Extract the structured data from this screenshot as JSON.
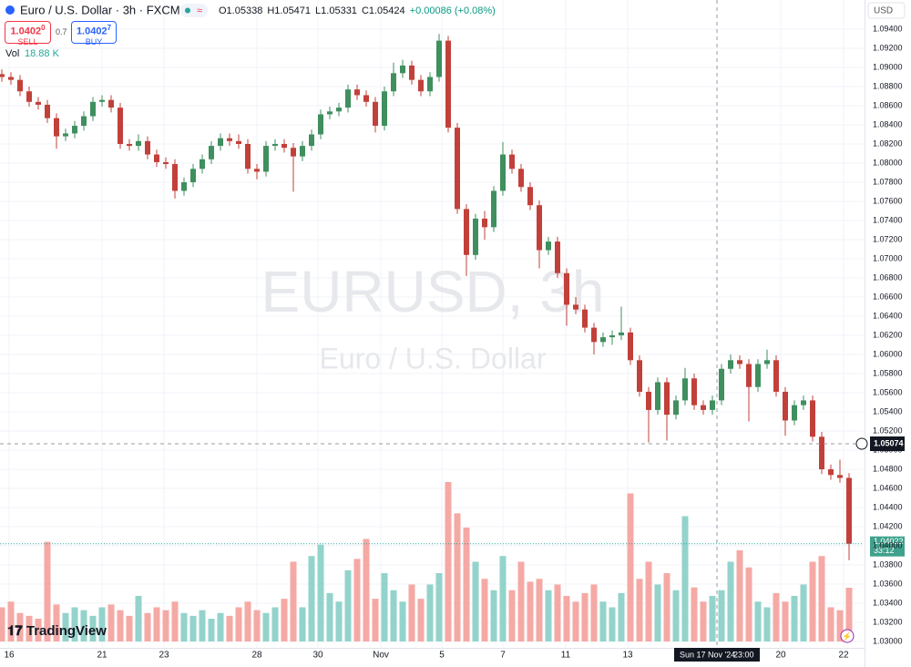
{
  "chart_data": {
    "type": "candlestick",
    "title": "Euro / U.S. Dollar · 3h · FXCM",
    "ohlc_readout": [
      "O1.05338",
      "H1.05471",
      "L1.05331",
      "C1.05424",
      "+0.00086 (+0.08%)"
    ],
    "sell": {
      "price": "1.0402",
      "pip": "0",
      "label": "SELL"
    },
    "buy": {
      "price": "1.0402",
      "pip": "7",
      "label": "BUY"
    },
    "spread": "0.7",
    "volume_label": "Vol",
    "volume_readout": "18.88 K",
    "watermark": "EURUSD, 3h",
    "watermark_subtitle": "Euro / U.S. Dollar",
    "currency": "USD",
    "crosshair_price": "1.05074",
    "crosshair_date": "Sun 17 Nov '24",
    "crosshair_time": "23:00",
    "countdown": "33:12",
    "brand": "TradingView",
    "up_color": "#3f8f5f",
    "down_color": "#c2403a",
    "volume_up_color": "#93d3cb",
    "volume_down_color": "#f5a9a5",
    "grid": true,
    "ylim": [
      1.03,
      1.094
    ],
    "yticks": [
      {
        "value": 1.03,
        "label": "1.03000"
      },
      {
        "value": 1.032,
        "label": "1.03200"
      },
      {
        "value": 1.034,
        "label": "1.03400"
      },
      {
        "value": 1.036,
        "label": "1.03600"
      },
      {
        "value": 1.038,
        "label": "1.03800"
      },
      {
        "value": 1.04,
        "label": "1.04000"
      },
      {
        "value": 1.042,
        "label": "1.04200"
      },
      {
        "value": 1.044,
        "label": "1.04400"
      },
      {
        "value": 1.046,
        "label": "1.04600"
      },
      {
        "value": 1.048,
        "label": "1.04800"
      },
      {
        "value": 1.05,
        "label": "1.05000"
      },
      {
        "value": 1.052,
        "label": "1.05200"
      },
      {
        "value": 1.054,
        "label": "1.05400"
      },
      {
        "value": 1.056,
        "label": "1.05600"
      },
      {
        "value": 1.058,
        "label": "1.05800"
      },
      {
        "value": 1.06,
        "label": "1.06000"
      },
      {
        "value": 1.062,
        "label": "1.06200"
      },
      {
        "value": 1.064,
        "label": "1.06400"
      },
      {
        "value": 1.066,
        "label": "1.06600"
      },
      {
        "value": 1.068,
        "label": "1.06800"
      },
      {
        "value": 1.07,
        "label": "1.07000"
      },
      {
        "value": 1.072,
        "label": "1.07200"
      },
      {
        "value": 1.074,
        "label": "1.07400"
      },
      {
        "value": 1.076,
        "label": "1.07600"
      },
      {
        "value": 1.078,
        "label": "1.07800"
      },
      {
        "value": 1.08,
        "label": "1.08000"
      },
      {
        "value": 1.082,
        "label": "1.08200"
      },
      {
        "value": 1.084,
        "label": "1.08400"
      },
      {
        "value": 1.086,
        "label": "1.08600"
      },
      {
        "value": 1.088,
        "label": "1.08800"
      },
      {
        "value": 1.09,
        "label": "1.09000"
      },
      {
        "value": 1.092,
        "label": "1.09200"
      },
      {
        "value": 1.094,
        "label": "1.09400"
      }
    ],
    "xlim": [
      -0.2,
      94.6
    ],
    "xticks": [
      {
        "value": 0.8,
        "label": "16"
      },
      {
        "value": 11,
        "label": "21"
      },
      {
        "value": 17.8,
        "label": "23"
      },
      {
        "value": 28,
        "label": "28"
      },
      {
        "value": 34.7,
        "label": "30"
      },
      {
        "value": 41.6,
        "label": "Nov"
      },
      {
        "value": 48.3,
        "label": "5"
      },
      {
        "value": 55,
        "label": "7"
      },
      {
        "value": 61.9,
        "label": "11"
      },
      {
        "value": 68.7,
        "label": "13"
      },
      {
        "value": 85.5,
        "label": "20"
      },
      {
        "value": 92.4,
        "label": "22"
      }
    ],
    "volume_ylim": [
      0,
      215
    ],
    "ohlc": [
      [
        1.0893,
        1.0898,
        1.0885,
        1.089
      ],
      [
        1.089,
        1.0895,
        1.0882,
        1.0887
      ],
      [
        1.0887,
        1.0892,
        1.087,
        1.0875
      ],
      [
        1.0875,
        1.088,
        1.0859,
        1.0864
      ],
      [
        1.0864,
        1.0869,
        1.0856,
        1.0861
      ],
      [
        1.0861,
        1.0866,
        1.0842,
        1.0847
      ],
      [
        1.0847,
        1.0852,
        1.0815,
        1.0828
      ],
      [
        1.0828,
        1.0836,
        1.0823,
        1.0831
      ],
      [
        1.0831,
        1.0844,
        1.0826,
        1.0839
      ],
      [
        1.0839,
        1.0854,
        1.0834,
        1.0849
      ],
      [
        1.0849,
        1.0869,
        1.0844,
        1.0864
      ],
      [
        1.0864,
        1.0871,
        1.0859,
        1.0866
      ],
      [
        1.0866,
        1.0871,
        1.0853,
        1.0858
      ],
      [
        1.0858,
        1.0863,
        1.0815,
        1.082
      ],
      [
        1.082,
        1.0825,
        1.0813,
        1.0818
      ],
      [
        1.0818,
        1.083,
        1.0813,
        1.0823
      ],
      [
        1.0823,
        1.0828,
        1.0804,
        1.0809
      ],
      [
        1.0809,
        1.0814,
        1.0796,
        1.0801
      ],
      [
        1.0801,
        1.0806,
        1.0794,
        1.0799
      ],
      [
        1.0799,
        1.0804,
        1.0763,
        1.0771
      ],
      [
        1.0771,
        1.0785,
        1.0766,
        1.078
      ],
      [
        1.078,
        1.0799,
        1.0775,
        1.0794
      ],
      [
        1.0794,
        1.0809,
        1.0789,
        1.0804
      ],
      [
        1.0804,
        1.0823,
        1.0799,
        1.0818
      ],
      [
        1.0818,
        1.0831,
        1.0813,
        1.0826
      ],
      [
        1.0826,
        1.0831,
        1.0818,
        1.0823
      ],
      [
        1.0823,
        1.083,
        1.0815,
        1.082
      ],
      [
        1.082,
        1.0825,
        1.0789,
        1.0794
      ],
      [
        1.0794,
        1.0799,
        1.0783,
        1.0791
      ],
      [
        1.0791,
        1.0823,
        1.0786,
        1.0818
      ],
      [
        1.0818,
        1.0825,
        1.0813,
        1.082
      ],
      [
        1.082,
        1.0825,
        1.0811,
        1.0816
      ],
      [
        1.0816,
        1.0821,
        1.077,
        1.0807
      ],
      [
        1.0807,
        1.0823,
        1.0802,
        1.0818
      ],
      [
        1.0818,
        1.0835,
        1.0813,
        1.083
      ],
      [
        1.083,
        1.0856,
        1.0825,
        1.0851
      ],
      [
        1.0851,
        1.0859,
        1.0846,
        1.0854
      ],
      [
        1.0854,
        1.0863,
        1.0849,
        1.0858
      ],
      [
        1.0858,
        1.0882,
        1.0853,
        1.0877
      ],
      [
        1.0877,
        1.0882,
        1.0866,
        1.0871
      ],
      [
        1.0871,
        1.0876,
        1.0859,
        1.0864
      ],
      [
        1.0864,
        1.0869,
        1.0832,
        1.0839
      ],
      [
        1.0839,
        1.088,
        1.0834,
        1.0875
      ],
      [
        1.0875,
        1.0905,
        1.087,
        1.0894
      ],
      [
        1.0894,
        1.0908,
        1.0889,
        1.0902
      ],
      [
        1.0902,
        1.0907,
        1.0882,
        1.0887
      ],
      [
        1.0887,
        1.0892,
        1.087,
        1.0875
      ],
      [
        1.0875,
        1.0895,
        1.087,
        1.089
      ],
      [
        1.089,
        1.0935,
        1.0885,
        1.0928
      ],
      [
        1.0928,
        1.0933,
        1.0832,
        1.0837
      ],
      [
        1.0837,
        1.0842,
        1.0747,
        1.0752
      ],
      [
        1.0752,
        1.0757,
        1.0682,
        1.0704
      ],
      [
        1.0704,
        1.0747,
        1.0699,
        1.0742
      ],
      [
        1.0742,
        1.075,
        1.072,
        1.0733
      ],
      [
        1.0733,
        1.0776,
        1.0728,
        1.0771
      ],
      [
        1.0771,
        1.0822,
        1.0766,
        1.0809
      ],
      [
        1.0809,
        1.0814,
        1.0789,
        1.0794
      ],
      [
        1.0794,
        1.0799,
        1.077,
        1.0775
      ],
      [
        1.0775,
        1.078,
        1.0751,
        1.0756
      ],
      [
        1.0756,
        1.0761,
        1.069,
        1.0709
      ],
      [
        1.0709,
        1.0723,
        1.0704,
        1.0718
      ],
      [
        1.0718,
        1.0723,
        1.068,
        1.0685
      ],
      [
        1.0685,
        1.069,
        1.063,
        1.0652
      ],
      [
        1.0652,
        1.066,
        1.0642,
        1.0647
      ],
      [
        1.0647,
        1.0652,
        1.0623,
        1.0628
      ],
      [
        1.0628,
        1.0633,
        1.06,
        1.0613
      ],
      [
        1.0613,
        1.0623,
        1.0608,
        1.0618
      ],
      [
        1.0618,
        1.0625,
        1.061,
        1.062
      ],
      [
        1.062,
        1.065,
        1.0615,
        1.0623
      ],
      [
        1.0623,
        1.0628,
        1.0589,
        1.0594
      ],
      [
        1.0594,
        1.0599,
        1.0556,
        1.0561
      ],
      [
        1.0561,
        1.0566,
        1.0508,
        1.0542
      ],
      [
        1.0542,
        1.0576,
        1.0537,
        1.0571
      ],
      [
        1.0571,
        1.0576,
        1.051,
        1.0537
      ],
      [
        1.0537,
        1.0557,
        1.0532,
        1.0552
      ],
      [
        1.0552,
        1.0586,
        1.0547,
        1.0575
      ],
      [
        1.0575,
        1.058,
        1.0542,
        1.0547
      ],
      [
        1.0547,
        1.0552,
        1.0537,
        1.0542
      ],
      [
        1.0542,
        1.0557,
        1.0537,
        1.0552
      ],
      [
        1.0552,
        1.059,
        1.0547,
        1.0585
      ],
      [
        1.0585,
        1.06,
        1.058,
        1.0594
      ],
      [
        1.0594,
        1.0599,
        1.0585,
        1.059
      ],
      [
        1.059,
        1.0595,
        1.053,
        1.0566
      ],
      [
        1.0566,
        1.0595,
        1.0561,
        1.059
      ],
      [
        1.059,
        1.0605,
        1.0585,
        1.0594
      ],
      [
        1.0594,
        1.0599,
        1.0556,
        1.0561
      ],
      [
        1.0561,
        1.0566,
        1.0515,
        1.0531
      ],
      [
        1.0531,
        1.0552,
        1.0526,
        1.0547
      ],
      [
        1.0547,
        1.0557,
        1.0542,
        1.0552
      ],
      [
        1.0552,
        1.0557,
        1.0509,
        1.0514
      ],
      [
        1.0514,
        1.0519,
        1.0475,
        1.048
      ],
      [
        1.048,
        1.0485,
        1.0469,
        1.0474
      ],
      [
        1.0474,
        1.049,
        1.0466,
        1.0471
      ],
      [
        1.0471,
        1.0476,
        1.0385,
        1.04022
      ]
    ],
    "volume": [
      12,
      14,
      10,
      9,
      8,
      35,
      13,
      10,
      12,
      11,
      9,
      12,
      13,
      11,
      9,
      16,
      10,
      12,
      11,
      14,
      10,
      9,
      11,
      8,
      10,
      9,
      12,
      14,
      11,
      10,
      12,
      15,
      28,
      12,
      30,
      34,
      17,
      14,
      25,
      29,
      36,
      15,
      24,
      18,
      14,
      20,
      15,
      20,
      24,
      56,
      45,
      40,
      28,
      22,
      18,
      30,
      18,
      28,
      21,
      22,
      18,
      20,
      16,
      14,
      17,
      20,
      14,
      12,
      17,
      52,
      22,
      28,
      20,
      24,
      18,
      44,
      19,
      14,
      16,
      18,
      28,
      32,
      26,
      14,
      12,
      17,
      14,
      16,
      20,
      28,
      30,
      12,
      11,
      18.88
    ]
  }
}
